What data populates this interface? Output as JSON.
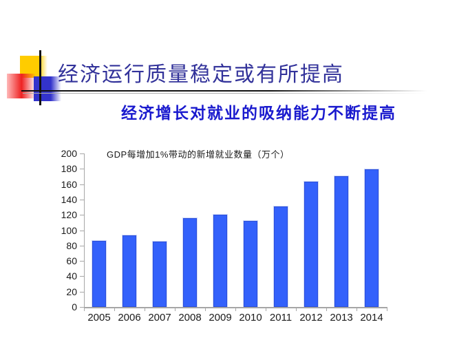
{
  "slide": {
    "title": "经济运行质量稳定或有所提高",
    "subtitle": "经济增长对就业的吸纳能力不断提高"
  },
  "chart_data": {
    "type": "bar",
    "title": "GDP每增加1%带动的新增就业数量（万个）",
    "categories": [
      "2005",
      "2006",
      "2007",
      "2008",
      "2009",
      "2010",
      "2011",
      "2012",
      "2013",
      "2014"
    ],
    "values": [
      86,
      93,
      85,
      116,
      120,
      112,
      131,
      163,
      170,
      179
    ],
    "xlabel": "",
    "ylabel": "",
    "ylim": [
      0,
      200
    ],
    "ytick_step": 20,
    "yticks": [
      0,
      20,
      40,
      60,
      80,
      100,
      120,
      140,
      160,
      180,
      200
    ],
    "grid": false,
    "legend": false,
    "bar_color": "#3361fb"
  },
  "colors": {
    "title_color": "#32329a",
    "subtitle_color": "#1a1ace",
    "chart_text": "#1a1a1a",
    "axis_color": "#a6a6a6",
    "bar_fill": "#3361fb",
    "bar_border": "#2b4ed8",
    "rule_dark": "#111111",
    "rule_light": "#aaaaaa",
    "crosshair": "#111111",
    "logo_yellow": "#ffcc00",
    "logo_red": "#ee2222",
    "logo_blue": "#3333cc"
  }
}
